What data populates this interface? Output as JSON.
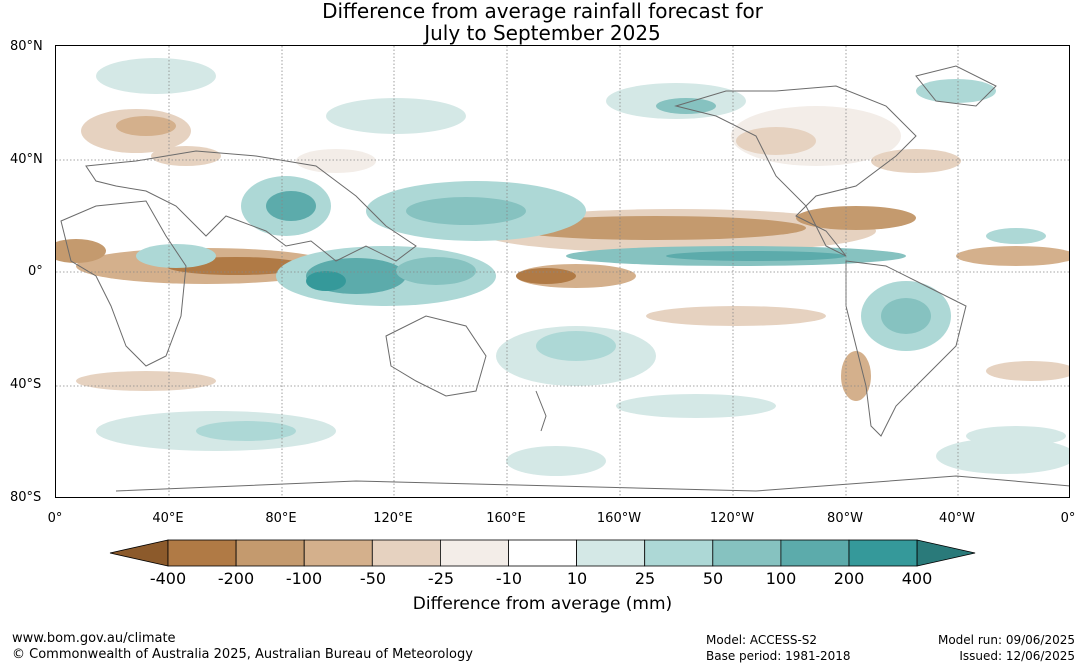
{
  "title": {
    "line1": "Difference from average rainfall forecast for",
    "line2": "July to September 2025"
  },
  "axes": {
    "lat_labels": [
      "80°N",
      "40°N",
      "0°",
      "40°S",
      "80°S"
    ],
    "lon_labels": [
      "0°",
      "40°E",
      "80°E",
      "120°E",
      "160°E",
      "160°W",
      "120°W",
      "80°W",
      "40°W",
      "0°"
    ]
  },
  "colorbar": {
    "label": "Difference from average (mm)",
    "ticks": [
      "-400",
      "-200",
      "-100",
      "-50",
      "-25",
      "-10",
      "10",
      "25",
      "50",
      "100",
      "200",
      "400"
    ],
    "colors": [
      "#8c5a2b",
      "#b07a45",
      "#c49a6e",
      "#d4b08c",
      "#e6d2c0",
      "#f3ede8",
      "#ffffff",
      "#d4e8e6",
      "#add8d6",
      "#86c2c0",
      "#5cabab",
      "#35999a",
      "#2a7a7a"
    ]
  },
  "footer": {
    "url": "www.bom.gov.au/climate",
    "copyright": "© Commonwealth of Australia 2025, Australian Bureau of Meteorology",
    "model": "Model: ACCESS-S2",
    "base_period": "Base period: 1981-2018",
    "model_run": "Model run: 09/06/2025",
    "issued": "Issued: 12/06/2025"
  }
}
